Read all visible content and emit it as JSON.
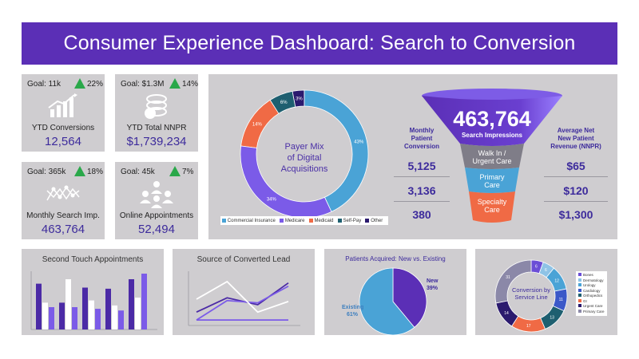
{
  "header": {
    "title": "Consumer Experience Dashboard: Search to Conversion"
  },
  "kpis": [
    {
      "goal": "Goal: 11k",
      "pct": "22%",
      "label": "YTD Conversions",
      "value": "12,564",
      "icon": "growth-chart-icon"
    },
    {
      "goal": "Goal: $1.3M",
      "pct": "14%",
      "label": "YTD Total NNPR",
      "value": "$1,739,234",
      "icon": "coin-stack-icon"
    },
    {
      "goal": "Goal: 365k",
      "pct": "18%",
      "label": "Monthly Search Imp.",
      "value": "463,764",
      "icon": "network-graph-icon"
    },
    {
      "goal": "Goal: 45k",
      "pct": "7%",
      "label": "Online Appointments",
      "value": "52,494",
      "icon": "people-group-icon"
    }
  ],
  "colors": {
    "purple": "#5b2fb6",
    "blue": "#4aa3d6",
    "violet": "#7b5be8",
    "orange": "#f06a45",
    "teal": "#1e5f70",
    "navy": "#2b1a6e",
    "green": "#2aa84a",
    "panel": "#cfcdd0"
  },
  "payer_mix": {
    "center_text": [
      "Payer Mix",
      "of Digital",
      "Acquisitions"
    ],
    "legend": [
      "Commercial Insurance",
      "Medicare",
      "Medicaid",
      "Self-Pay",
      "Other"
    ]
  },
  "funnel": {
    "impressions_value": "463,764",
    "impressions_label": "Search Impressions",
    "stages": [
      [
        "Walk In /",
        "Urgent Care"
      ],
      [
        "Primary",
        "Care"
      ],
      [
        "Specialty",
        "Care"
      ]
    ],
    "left_header": [
      "Monthly",
      "Patient",
      "Conversion"
    ],
    "left_values": [
      "5,125",
      "3,136",
      "380"
    ],
    "right_header": [
      "Average Net",
      "New Patient",
      "Revenue (NNPR)"
    ],
    "right_values": [
      "$65",
      "$120",
      "$1,300"
    ]
  },
  "panels": {
    "second_touch": "Second Touch Appointments",
    "source_lead": "Source of Converted Lead",
    "patients_acq": "Patients Acquired: New vs. Existing",
    "service_line": [
      "Conversion by",
      "Service Line"
    ],
    "service_legend": [
      "Bones",
      "Dermatology",
      "Urology",
      "Cardiology",
      "Orthopedics",
      "GI",
      "Urgent Care",
      "Primary Care"
    ]
  },
  "chart_data": [
    {
      "type": "pie",
      "title": "",
      "donut": true,
      "categories": [
        "Commercial Insurance",
        "Medicare",
        "Medicaid",
        "Self-Pay",
        "Other"
      ],
      "values": [
        43,
        34,
        14,
        6,
        3
      ],
      "labels": [
        "43%",
        "34%",
        "14%",
        "6%",
        "3%"
      ],
      "colors": [
        "#4aa3d6",
        "#7b5be8",
        "#f06a45",
        "#1e5f70",
        "#2b1a6e"
      ]
    },
    {
      "type": "bar",
      "title": "Second Touch Appointments",
      "series": [
        {
          "values": [
            82,
            48,
            75,
            73,
            90
          ]
        },
        {
          "values": [
            48,
            90,
            52,
            43,
            57
          ]
        },
        {
          "values": [
            40,
            40,
            37,
            34,
            100
          ]
        }
      ],
      "ylim": [
        0,
        100
      ],
      "colors": [
        "#4b2aa6",
        "#ffffff",
        "#7b5be8"
      ]
    },
    {
      "type": "line",
      "title": "Source of Converted Lead",
      "series": [
        {
          "values": [
            22,
            53,
            38,
            85
          ]
        },
        {
          "values": [
            5,
            47,
            42,
            78
          ]
        },
        {
          "values": [
            50,
            88,
            22,
            45
          ]
        },
        {
          "values": [
            5,
            5,
            5,
            5
          ]
        }
      ],
      "ylim": [
        0,
        100
      ],
      "colors": [
        "#4b2aa6",
        "#7b5be8",
        "#ffffff",
        "#7b5be8"
      ]
    },
    {
      "type": "pie",
      "title": "Patients Acquired: New vs. Existing",
      "categories": [
        "New",
        "Existing"
      ],
      "values": [
        39,
        61
      ],
      "labels": [
        "39%",
        "61%"
      ],
      "colors": [
        "#5b2fb6",
        "#4aa3d6"
      ]
    },
    {
      "type": "pie",
      "title": "Conversion by Service Line",
      "donut": true,
      "categories": [
        "Bones",
        "Dermatology",
        "Urology",
        "Cardiology",
        "Orthopedics",
        "GI",
        "Urgent Care",
        "Primary Care"
      ],
      "values": [
        6,
        6,
        12,
        11,
        13,
        17,
        14,
        31
      ],
      "labels": [
        "6",
        "6",
        "12",
        "11",
        "13",
        "17",
        "14",
        "31"
      ],
      "colors": [
        "#6b4ed6",
        "#8ec3e6",
        "#4aa3d6",
        "#3b58c8",
        "#1e5f70",
        "#f06a45",
        "#2b1a6e",
        "#8b88a8"
      ]
    }
  ]
}
